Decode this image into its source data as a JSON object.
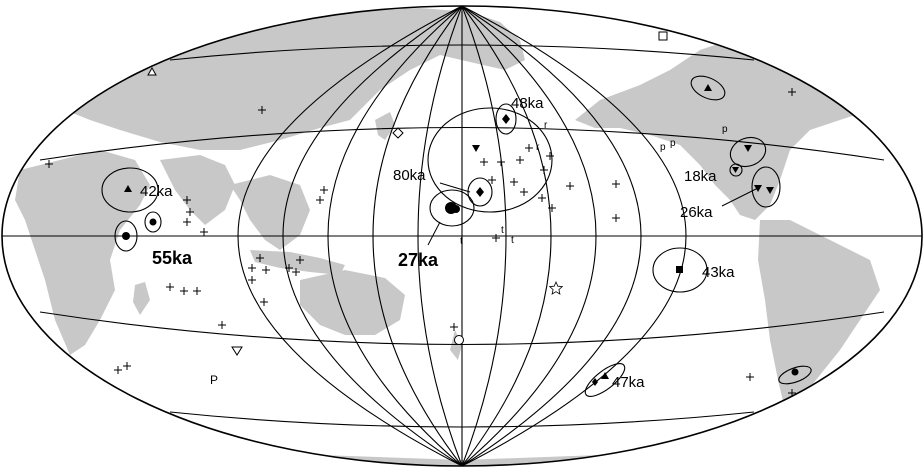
{
  "map": {
    "projection": "hammer-aitoff",
    "colors": {
      "land": "#c8c8c8",
      "ocean": "#ffffff",
      "lines": "#000000"
    },
    "age_labels": [
      {
        "id": "42ka",
        "text": "42ka",
        "bold": false
      },
      {
        "id": "55ka",
        "text": "55ka",
        "bold": true
      },
      {
        "id": "48ka",
        "text": "48ka",
        "bold": false
      },
      {
        "id": "80ka",
        "text": "80ka",
        "bold": false
      },
      {
        "id": "27ka",
        "text": "27ka",
        "bold": true
      },
      {
        "id": "18ka",
        "text": "18ka",
        "bold": false
      },
      {
        "id": "26ka",
        "text": "26ka",
        "bold": false
      },
      {
        "id": "43ka",
        "text": "43ka",
        "bold": false
      },
      {
        "id": "47ka",
        "text": "47ka",
        "bold": false
      }
    ],
    "small_letters": [
      "r",
      "r",
      "t",
      "t",
      "t",
      "p",
      "p",
      "p",
      "P"
    ]
  }
}
